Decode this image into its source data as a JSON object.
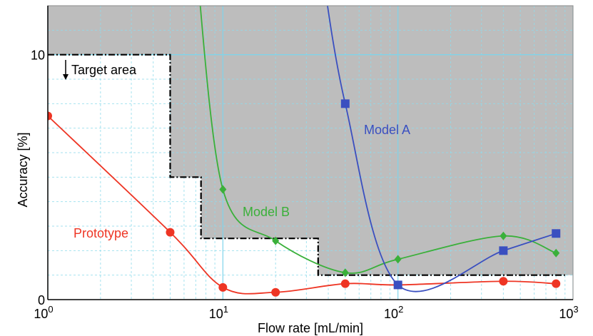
{
  "chart_data": {
    "type": "line",
    "xlabel": "Flow rate [mL/min]",
    "ylabel": "Accuracy [%]",
    "x_scale": "log",
    "xlim": [
      1,
      1000
    ],
    "ylim": [
      0,
      12
    ],
    "x_ticks": [
      {
        "value": 1,
        "base": "10",
        "exp": "0"
      },
      {
        "value": 10,
        "base": "10",
        "exp": "1"
      },
      {
        "value": 100,
        "base": "10",
        "exp": "2"
      },
      {
        "value": 1000,
        "base": "10",
        "exp": "3"
      }
    ],
    "y_ticks": [
      {
        "value": 0,
        "label": "0"
      },
      {
        "value": 10,
        "label": "10"
      }
    ],
    "grid": true,
    "series": [
      {
        "name": "Prototype",
        "color": "#ee3524",
        "marker": "circle",
        "x": [
          1,
          5,
          10,
          20,
          50,
          100,
          400,
          800
        ],
        "y": [
          7.5,
          2.75,
          0.5,
          0.3,
          0.65,
          0.6,
          0.75,
          0.65
        ]
      },
      {
        "name": "Model B",
        "color": "#3ab03a",
        "marker": "diamond",
        "x": [
          10,
          20,
          50,
          100,
          400,
          800
        ],
        "y": [
          4.5,
          2.4,
          1.1,
          1.65,
          2.6,
          1.9
        ]
      },
      {
        "name": "Model A",
        "color": "#3a4fc0",
        "marker": "square",
        "x": [
          50,
          100,
          400,
          800
        ],
        "y": [
          8.0,
          0.6,
          2.0,
          2.7
        ]
      }
    ],
    "target_area": {
      "label": "Target area",
      "boundary_x": [
        1,
        5,
        5,
        7.5,
        7.5,
        35,
        35,
        900
      ],
      "boundary_y": [
        10,
        10,
        5,
        5,
        2.5,
        2.5,
        1.0,
        1.0
      ]
    }
  }
}
